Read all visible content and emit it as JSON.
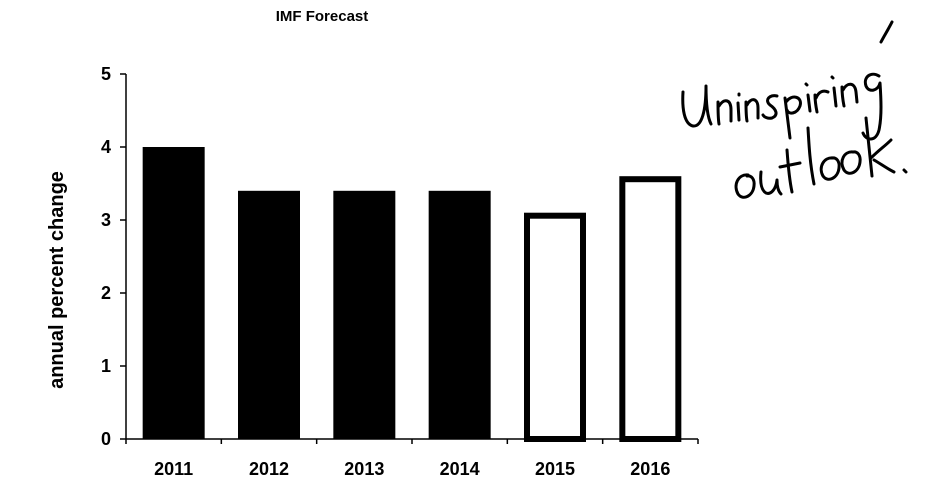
{
  "chart_data": {
    "type": "bar",
    "title": "IMF Forecast",
    "xlabel": "",
    "ylabel": "annual percent change",
    "categories": [
      "2011",
      "2012",
      "2013",
      "2014",
      "2015",
      "2016"
    ],
    "values": [
      4.0,
      3.4,
      3.4,
      3.4,
      3.1,
      3.6
    ],
    "bar_styles": [
      "solid",
      "solid",
      "solid",
      "solid",
      "outline",
      "outline"
    ],
    "ylim": [
      0,
      5
    ],
    "yticks": [
      "0",
      "1",
      "2",
      "3",
      "4",
      "5"
    ],
    "grid": false,
    "legend": "none",
    "colors": {
      "bar": "#000000",
      "outline_fill": "#ffffff",
      "axis": "#000000"
    }
  },
  "annotation": {
    "text": "Uninspiring outlook.",
    "style": "handwritten"
  }
}
